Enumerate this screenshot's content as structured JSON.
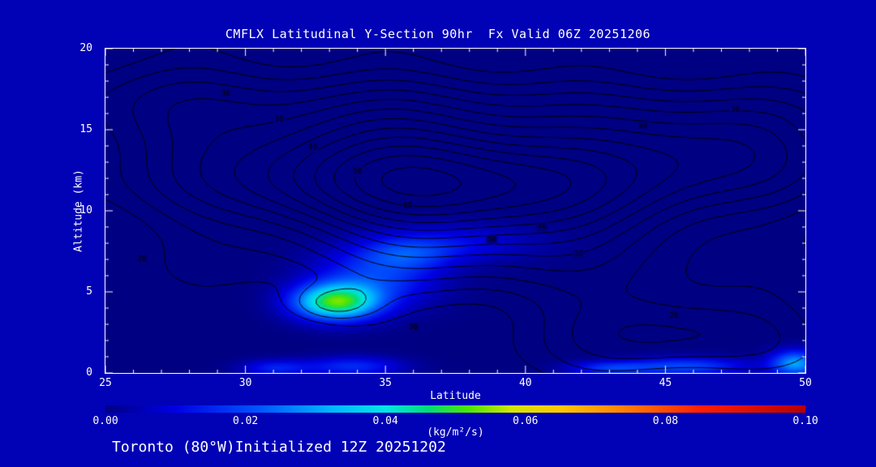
{
  "colors": {
    "background": "#0101b5",
    "plot_background": "#000080",
    "contour_line": "#000000",
    "axis": "#ffffff",
    "text": "#ffffff"
  },
  "chart_data": {
    "type": "heatmap",
    "title": "CMFLX Latitudinal Y-Section 90hr  Fx Valid 06Z 20251206",
    "xlabel": "Latitude",
    "ylabel": "Altitude (km)",
    "xlim": [
      25,
      50
    ],
    "ylim": [
      0,
      20
    ],
    "grid": false,
    "x_tick_values": [
      25,
      30,
      35,
      40,
      45,
      50
    ],
    "x_tick_labels": [
      "25",
      "30",
      "35",
      "40",
      "45",
      "50"
    ],
    "y_tick_values": [
      0,
      5,
      10,
      15,
      20
    ],
    "y_tick_labels": [
      "0",
      "5",
      "10",
      "15",
      "20"
    ],
    "minor_tick_step_x": 1,
    "minor_tick_step_y": 1,
    "footer": "Toronto (80°W)Initialized 12Z 20251202",
    "colorbar": {
      "min": 0.0,
      "max": 0.1,
      "tick_values": [
        0.0,
        0.02,
        0.04,
        0.06,
        0.08,
        0.1
      ],
      "tick_labels": [
        "0.00",
        "0.02",
        "0.04",
        "0.06",
        "0.08",
        "0.10"
      ],
      "units": "(kg/m²/s)",
      "stops": [
        {
          "p": 0.0,
          "c": "#000082"
        },
        {
          "p": 0.1,
          "c": "#0000e6"
        },
        {
          "p": 0.22,
          "c": "#0055ff"
        },
        {
          "p": 0.32,
          "c": "#00b4ff"
        },
        {
          "p": 0.4,
          "c": "#00e6e6"
        },
        {
          "p": 0.46,
          "c": "#00dc78"
        },
        {
          "p": 0.52,
          "c": "#50e600"
        },
        {
          "p": 0.58,
          "c": "#d2e600"
        },
        {
          "p": 0.65,
          "c": "#ffc800"
        },
        {
          "p": 0.75,
          "c": "#ff7800"
        },
        {
          "p": 0.85,
          "c": "#ff1e00"
        },
        {
          "p": 1.0,
          "c": "#b40000"
        }
      ]
    },
    "fill_field": {
      "description": "CMFLX shaded values (kg/m2/s); bright core near lat 33, alt 4 km",
      "gaussians": [
        {
          "amp": 0.048,
          "lat": 33.2,
          "alt": 4.3,
          "slat": 1.5,
          "salt": 1.1
        },
        {
          "amp": 0.018,
          "lat": 34.6,
          "alt": 5.8,
          "slat": 2.2,
          "salt": 1.8
        },
        {
          "amp": 0.012,
          "lat": 35.8,
          "alt": 7.3,
          "slat": 1.6,
          "salt": 1.0
        },
        {
          "amp": 0.01,
          "lat": 37.5,
          "alt": 8.0,
          "slat": 3.0,
          "salt": 1.2
        },
        {
          "amp": 0.016,
          "lat": 33.8,
          "alt": 0.3,
          "slat": 1.8,
          "salt": 0.6
        },
        {
          "amp": 0.014,
          "lat": 31.0,
          "alt": 0.2,
          "slat": 1.2,
          "salt": 0.5
        },
        {
          "amp": 0.016,
          "lat": 43.0,
          "alt": 0.2,
          "slat": 1.5,
          "salt": 0.4
        },
        {
          "amp": 0.02,
          "lat": 45.8,
          "alt": 0.3,
          "slat": 2.2,
          "salt": 0.55
        },
        {
          "amp": 0.03,
          "lat": 49.7,
          "alt": 0.5,
          "slat": 0.9,
          "salt": 0.8
        }
      ]
    },
    "contour_field": {
      "levels": [
        5,
        10,
        15,
        20,
        25,
        30,
        35,
        40,
        45,
        50,
        55,
        60
      ],
      "gaussians": [
        {
          "amp": 60,
          "lat": 36.8,
          "alt": 11.8,
          "slat": 8.0,
          "salt": 5.0,
          "tilt": 0.35
        },
        {
          "amp": 26,
          "lat": 47.0,
          "alt": 14.0,
          "slat": 5.0,
          "salt": 3.2
        },
        {
          "amp": 22,
          "lat": 45.5,
          "alt": 2.5,
          "slat": 5.0,
          "salt": 2.5
        },
        {
          "amp": 16,
          "lat": 33.1,
          "alt": 4.2,
          "slat": 1.7,
          "salt": 1.2
        },
        {
          "amp": 8,
          "lat": 26.5,
          "alt": 16.5,
          "slat": 3.5,
          "salt": 3.5
        }
      ],
      "wobble": {
        "a": 2.0,
        "b": 1.5,
        "fl": 0.9,
        "fa": 1.15
      },
      "labels": [
        {
          "text": "30",
          "lat": 29.3,
          "alt": 17.2
        },
        {
          "text": "30",
          "lat": 31.2,
          "alt": 15.6
        },
        {
          "text": "40",
          "lat": 32.4,
          "alt": 13.9
        },
        {
          "text": "50",
          "lat": 34.0,
          "alt": 12.4
        },
        {
          "text": "60",
          "lat": 35.8,
          "alt": 10.3
        },
        {
          "text": "50",
          "lat": 38.8,
          "alt": 8.2
        },
        {
          "text": "40",
          "lat": 40.6,
          "alt": 9.0
        },
        {
          "text": "30",
          "lat": 41.9,
          "alt": 7.3
        },
        {
          "text": "40",
          "lat": 44.2,
          "alt": 15.2
        },
        {
          "text": "30",
          "lat": 47.5,
          "alt": 16.2
        },
        {
          "text": "20",
          "lat": 45.3,
          "alt": 3.5
        },
        {
          "text": "20",
          "lat": 26.3,
          "alt": 7.0
        },
        {
          "text": "30",
          "lat": 36.0,
          "alt": 2.8
        }
      ]
    }
  }
}
